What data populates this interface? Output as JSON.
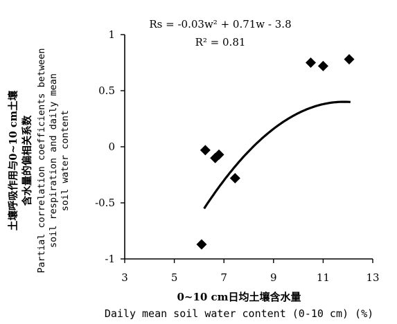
{
  "chart_data": {
    "type": "scatter",
    "title": "",
    "equation": {
      "line1": "Rs = -0.03w² + 0.71w - 3.8",
      "line2": "R² = 0.81"
    },
    "xlabel_cn": "0~10 cm日均土壤含水量",
    "xlabel": "Daily mean soil water content (0-10 cm) (%)",
    "ylabel_lines": [
      "土壤呼吸作用与0~10 cm土壤",
      "含水量的偏相关系数",
      "Partial correlation coefficients between",
      "soil respiration and daily mean",
      "soil water content"
    ],
    "xlim": [
      3,
      13
    ],
    "ylim": [
      -1,
      1
    ],
    "x_ticks": [
      3,
      5,
      7,
      9,
      11,
      13
    ],
    "y_ticks": [
      -1,
      -0.5,
      0,
      0.5,
      1
    ],
    "y_tick_labels": [
      "-1",
      "-0.5",
      "0",
      "0.5",
      "1"
    ],
    "grid": false,
    "series": [
      {
        "marker": "diamond",
        "points": [
          {
            "x": 6.1,
            "y": -0.87
          },
          {
            "x": 6.25,
            "y": -0.03
          },
          {
            "x": 6.65,
            "y": -0.1
          },
          {
            "x": 6.8,
            "y": -0.07
          },
          {
            "x": 7.45,
            "y": -0.28
          },
          {
            "x": 10.5,
            "y": 0.75
          },
          {
            "x": 11.0,
            "y": 0.72
          },
          {
            "x": 12.05,
            "y": 0.78
          }
        ]
      }
    ],
    "fit_curve": {
      "coefficients": {
        "a": -0.03,
        "b": 0.71,
        "c": -3.8
      },
      "x_range": [
        6.2,
        12.1
      ]
    },
    "colors": {
      "ink": "#000000",
      "background": "#ffffff"
    }
  }
}
